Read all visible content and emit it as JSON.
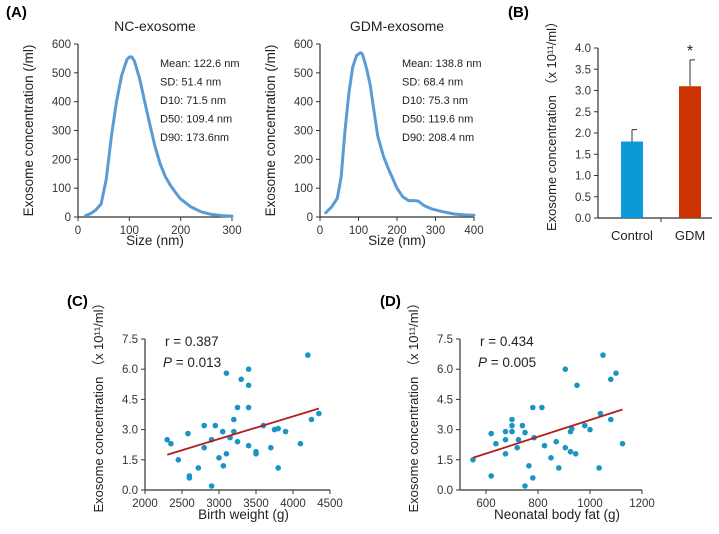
{
  "panel_labels": {
    "A": "(A)",
    "B": "(B)",
    "C": "(C)",
    "D": "(D)"
  },
  "colors": {
    "curve": "#5b9bd5",
    "control_bar": "#0b9ad6",
    "gdm_bar": "#cc3300",
    "scatter_point": "#1a94c2",
    "fit_line": "#b01e1e",
    "axis": "#333333"
  },
  "chart_data": [
    {
      "id": "A1",
      "type": "line",
      "title": "NC-exosome",
      "xlabel": "Size  (nm)",
      "ylabel": "Exosome concentration  (/ml)",
      "xlim": [
        0,
        300
      ],
      "ylim": [
        0,
        600
      ],
      "xticks": [
        0,
        100,
        200,
        300
      ],
      "yticks": [
        0,
        100,
        200,
        300,
        400,
        500,
        600
      ],
      "x": [
        15,
        25,
        35,
        45,
        55,
        65,
        75,
        85,
        95,
        100,
        105,
        110,
        120,
        130,
        140,
        150,
        160,
        170,
        180,
        190,
        200,
        220,
        240,
        260,
        280,
        300
      ],
      "y": [
        5,
        12,
        25,
        45,
        130,
        280,
        400,
        490,
        545,
        555,
        555,
        540,
        480,
        400,
        320,
        245,
        185,
        140,
        110,
        85,
        62,
        35,
        18,
        9,
        5,
        3
      ],
      "annotations": [
        "Mean: 122.6 nm",
        "SD: 51.4 nm",
        "D10: 71.5 nm",
        "D50: 109.4 nm",
        "D90: 173.6nm"
      ]
    },
    {
      "id": "A2",
      "type": "line",
      "title": "GDM-exosome",
      "xlabel": "Size  (nm)",
      "ylabel": "Exosome concentration  (/ml)",
      "xlim": [
        0,
        400
      ],
      "ylim": [
        0,
        600
      ],
      "xticks": [
        0,
        100,
        200,
        300,
        400
      ],
      "yticks": [
        0,
        100,
        200,
        300,
        400,
        500,
        600
      ],
      "x": [
        15,
        30,
        45,
        55,
        65,
        75,
        85,
        95,
        105,
        110,
        120,
        130,
        140,
        150,
        165,
        180,
        200,
        215,
        230,
        245,
        255,
        270,
        290,
        320,
        350,
        380,
        400
      ],
      "y": [
        15,
        35,
        65,
        140,
        300,
        430,
        520,
        560,
        570,
        565,
        520,
        460,
        370,
        280,
        210,
        160,
        100,
        70,
        57,
        57,
        55,
        40,
        28,
        18,
        10,
        7,
        6
      ],
      "annotations": [
        "Mean: 138.8 nm",
        "SD: 68.4 nm",
        "D10: 75.3 nm",
        "D50: 119.6 nm",
        "D90: 208.4 nm"
      ]
    },
    {
      "id": "B",
      "type": "bar",
      "categories": [
        "Control",
        "GDM"
      ],
      "values": [
        1.8,
        3.1
      ],
      "errors": [
        0.28,
        0.62
      ],
      "significance": [
        "",
        "*"
      ],
      "ylabel": "Exosome concentration （x 10¹¹/ml）",
      "ylim": [
        0,
        4.0
      ],
      "yticks": [
        "0.0",
        "0.5",
        "1.0",
        "1.5",
        "2.0",
        "2.5",
        "3.0",
        "3.5",
        "4.0"
      ]
    },
    {
      "id": "C",
      "type": "scatter",
      "xlabel": "Birth weight (g)",
      "ylabel": "Exosome concentration （x 10¹¹/ml）",
      "xlim": [
        2000,
        4500
      ],
      "ylim": [
        0,
        7.5
      ],
      "xticks": [
        2000,
        2500,
        3000,
        3500,
        4000,
        4500
      ],
      "yticks": [
        "0.0",
        "1.5",
        "3.0",
        "4.5",
        "6.0",
        "7.5"
      ],
      "stats": {
        "r": "r = 0.387",
        "p_label": "P",
        "p_value": " = 0.013"
      },
      "fit": {
        "x": [
          2300,
          4350
        ],
        "y": [
          1.75,
          4.05
        ]
      },
      "points": [
        [
          2300,
          2.5
        ],
        [
          2350,
          2.3
        ],
        [
          2450,
          1.5
        ],
        [
          2580,
          2.8
        ],
        [
          2600,
          0.7
        ],
        [
          2600,
          0.6
        ],
        [
          2720,
          1.1
        ],
        [
          2800,
          3.2
        ],
        [
          2800,
          2.1
        ],
        [
          2900,
          2.5
        ],
        [
          2900,
          0.2
        ],
        [
          2950,
          3.2
        ],
        [
          3000,
          1.6
        ],
        [
          3050,
          2.9
        ],
        [
          3060,
          1.2
        ],
        [
          3100,
          5.8
        ],
        [
          3100,
          1.8
        ],
        [
          3150,
          2.6
        ],
        [
          3200,
          3.5
        ],
        [
          3200,
          2.9
        ],
        [
          3250,
          4.1
        ],
        [
          3250,
          2.4
        ],
        [
          3300,
          5.5
        ],
        [
          3400,
          6.0
        ],
        [
          3400,
          5.2
        ],
        [
          3400,
          4.1
        ],
        [
          3400,
          2.2
        ],
        [
          3500,
          1.9
        ],
        [
          3500,
          1.8
        ],
        [
          3600,
          3.2
        ],
        [
          3700,
          2.1
        ],
        [
          3750,
          3.0
        ],
        [
          3800,
          3.05
        ],
        [
          3800,
          1.1
        ],
        [
          3900,
          2.9
        ],
        [
          4100,
          2.3
        ],
        [
          4200,
          6.7
        ],
        [
          4250,
          3.5
        ],
        [
          4350,
          3.8
        ]
      ]
    },
    {
      "id": "D",
      "type": "scatter",
      "xlabel": "Neonatal body fat (g)",
      "ylabel": "Exosome concentration （x 10¹¹/ml）",
      "xlim": [
        500,
        1200
      ],
      "ylim": [
        0,
        7.5
      ],
      "xticks": [
        600,
        800,
        1000,
        1200
      ],
      "yticks": [
        "0.0",
        "1.5",
        "3.0",
        "4.5",
        "6.0",
        "7.5"
      ],
      "stats": {
        "r": "r = 0.434",
        "p_label": "P",
        "p_value": " = 0.005"
      },
      "fit": {
        "x": [
          550,
          1125
        ],
        "y": [
          1.6,
          4.0
        ]
      },
      "points": [
        [
          550,
          1.5
        ],
        [
          620,
          2.8
        ],
        [
          620,
          0.7
        ],
        [
          638,
          2.3
        ],
        [
          675,
          2.9
        ],
        [
          675,
          2.5
        ],
        [
          675,
          1.8
        ],
        [
          700,
          3.5
        ],
        [
          700,
          3.2
        ],
        [
          700,
          2.9
        ],
        [
          720,
          2.1
        ],
        [
          725,
          2.5
        ],
        [
          740,
          3.2
        ],
        [
          750,
          2.85
        ],
        [
          750,
          0.2
        ],
        [
          765,
          1.2
        ],
        [
          780,
          4.1
        ],
        [
          780,
          0.6
        ],
        [
          785,
          2.6
        ],
        [
          815,
          4.1
        ],
        [
          825,
          2.2
        ],
        [
          850,
          1.6
        ],
        [
          870,
          2.4
        ],
        [
          880,
          1.1
        ],
        [
          905,
          6.0
        ],
        [
          905,
          2.1
        ],
        [
          925,
          2.9
        ],
        [
          925,
          1.9
        ],
        [
          930,
          3.05
        ],
        [
          945,
          1.8
        ],
        [
          950,
          5.2
        ],
        [
          980,
          3.2
        ],
        [
          1000,
          3.0
        ],
        [
          1035,
          1.1
        ],
        [
          1040,
          3.8
        ],
        [
          1050,
          6.7
        ],
        [
          1080,
          5.5
        ],
        [
          1080,
          3.5
        ],
        [
          1100,
          5.8
        ],
        [
          1125,
          2.3
        ]
      ]
    }
  ]
}
